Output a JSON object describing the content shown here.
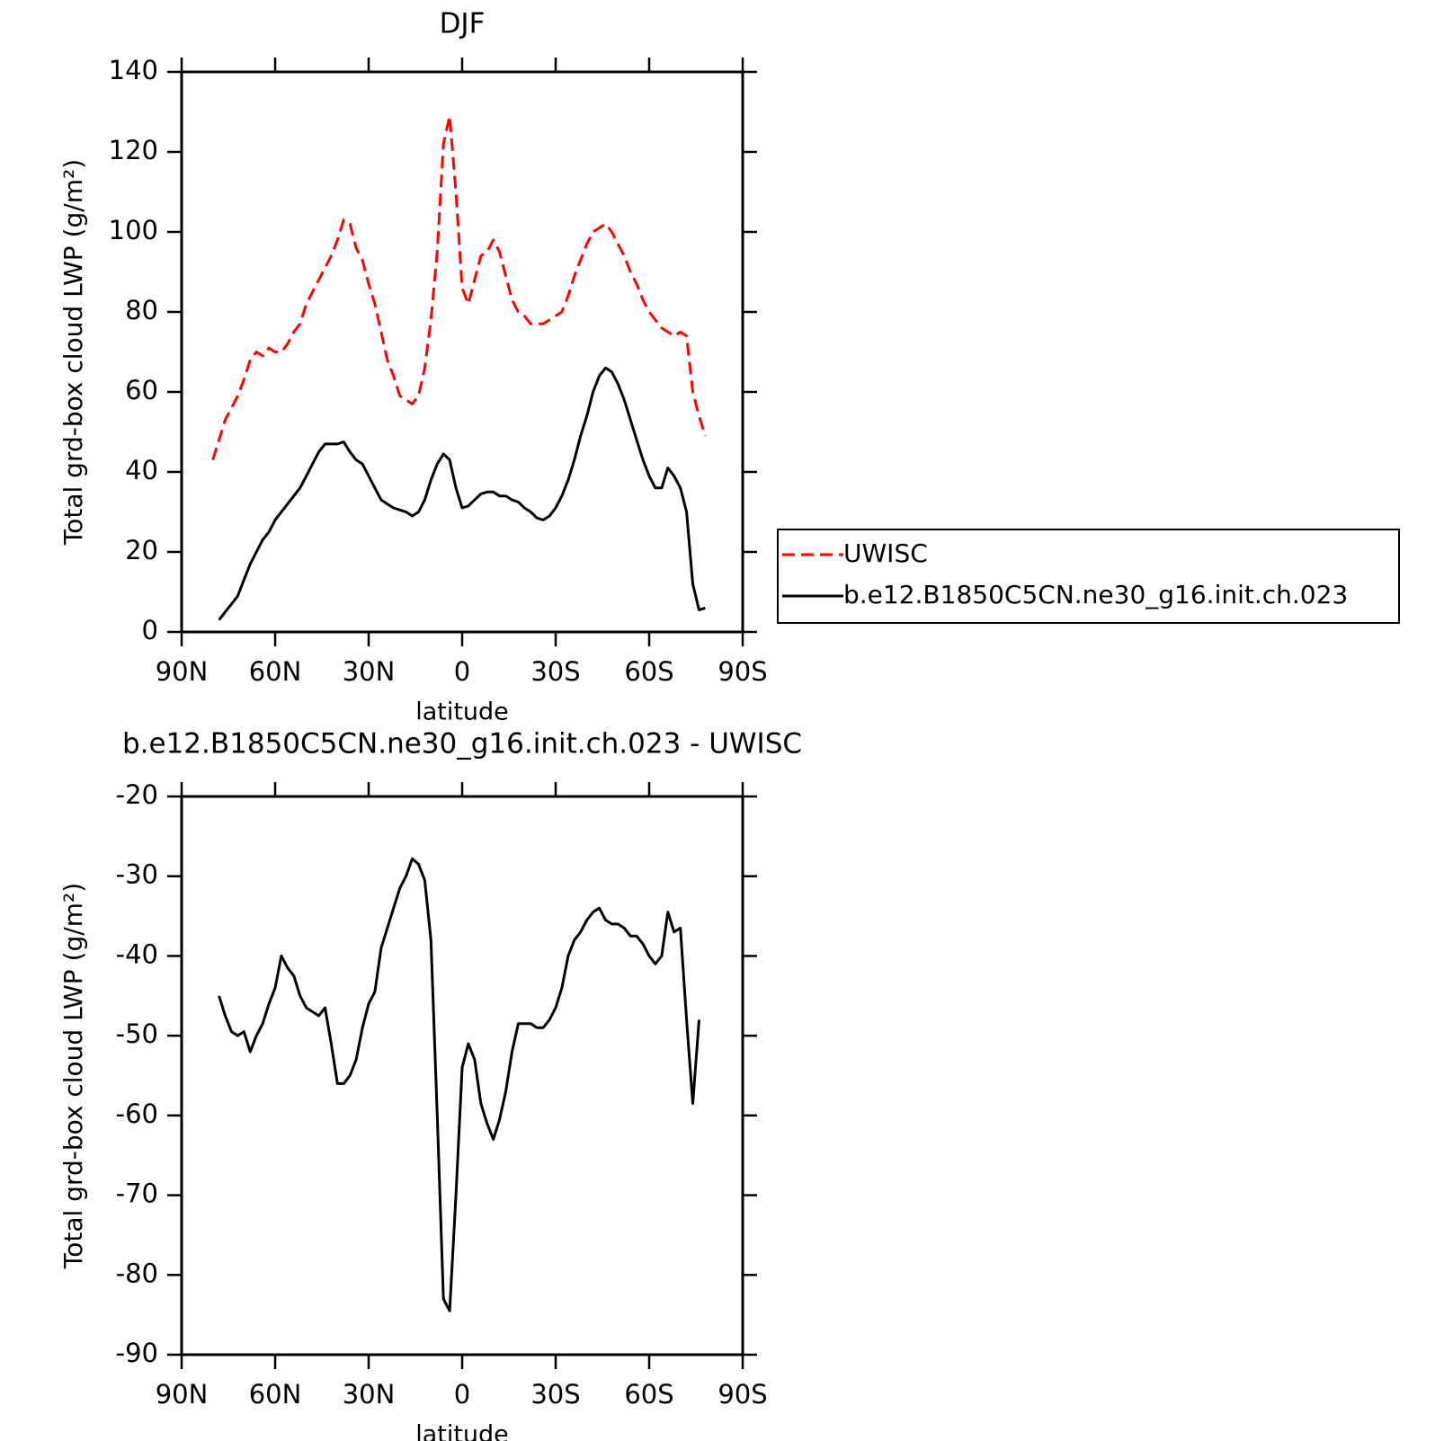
{
  "chart_data": [
    {
      "type": "line",
      "title": "DJF",
      "xlabel": "latitude",
      "ylabel": "Total grd-box cloud LWP (g/m²)",
      "x": [
        80,
        78,
        76,
        74,
        72,
        70,
        68,
        66,
        64,
        62,
        60,
        58,
        56,
        54,
        52,
        50,
        48,
        46,
        44,
        42,
        40,
        38,
        36,
        34,
        32,
        30,
        28,
        26,
        24,
        22,
        20,
        18,
        16,
        14,
        12,
        10,
        8,
        6,
        4,
        2,
        0,
        -2,
        -4,
        -6,
        -8,
        -10,
        -12,
        -14,
        -16,
        -18,
        -20,
        -22,
        -24,
        -26,
        -28,
        -30,
        -32,
        -34,
        -36,
        -38,
        -40,
        -42,
        -44,
        -46,
        -48,
        -50,
        -52,
        -54,
        -56,
        -58,
        -60,
        -62,
        -64,
        -66,
        -68,
        -70,
        -72,
        -74,
        -76,
        -78
      ],
      "xlim": [
        90,
        -90
      ],
      "xticks": [
        {
          "value": 90,
          "label": "90N"
        },
        {
          "value": 60,
          "label": "60N"
        },
        {
          "value": 30,
          "label": "30N"
        },
        0,
        {
          "value": -30,
          "label": "30S"
        },
        {
          "value": -60,
          "label": "60S"
        },
        {
          "value": -90,
          "label": "90S"
        }
      ],
      "ylim": [
        0,
        140
      ],
      "yticks": [
        0,
        20,
        40,
        60,
        80,
        100,
        120,
        140
      ],
      "legend": "right",
      "series": [
        {
          "name": "UWISC",
          "color": "#ff0000",
          "linestyle": "dashed",
          "values": [
            43,
            48,
            53,
            56,
            59,
            63,
            68,
            70,
            69,
            71,
            70,
            70,
            72,
            75,
            77,
            82,
            85,
            88,
            91,
            94,
            98,
            103,
            102,
            96,
            93,
            87,
            82,
            75,
            68,
            64,
            59,
            58,
            57,
            59,
            66,
            78,
            95,
            122,
            129,
            110,
            86,
            82,
            88,
            94,
            95,
            98,
            95,
            89,
            83,
            80,
            79,
            77,
            77,
            77,
            78,
            79,
            80,
            84,
            89,
            93,
            97,
            100,
            101,
            102,
            100,
            97,
            94,
            90,
            87,
            83,
            80,
            78,
            76,
            75,
            74,
            75,
            74,
            60,
            54,
            49
          ]
        },
        {
          "name": "b.e12.B1850C5CN.ne30_g16.init.ch.023",
          "color": "#000000",
          "linestyle": "solid",
          "values": [
            null,
            3,
            5,
            7,
            9,
            13,
            17,
            20,
            23,
            25,
            28,
            30,
            32,
            34,
            36,
            39,
            42,
            45,
            47,
            47,
            47,
            47.5,
            45,
            43,
            42,
            39,
            36,
            33,
            32,
            31,
            30.5,
            30,
            29,
            30,
            33,
            38,
            42,
            44.5,
            43,
            36,
            31,
            31.5,
            33,
            34.5,
            35,
            35,
            34,
            34,
            33,
            32.5,
            31,
            30,
            28.5,
            28,
            29,
            31,
            34,
            38,
            43,
            49,
            54,
            60,
            64,
            66,
            65,
            62,
            58,
            53,
            48,
            43,
            39,
            36,
            36,
            41,
            39,
            36,
            30,
            12,
            5.5,
            6
          ]
        }
      ]
    },
    {
      "type": "line",
      "title": "b.e12.B1850C5CN.ne30_g16.init.ch.023 - UWISC",
      "xlabel": "latitude",
      "ylabel": "Total grd-box cloud LWP (g/m²)",
      "x": [
        78,
        76,
        74,
        72,
        70,
        68,
        66,
        64,
        62,
        60,
        58,
        56,
        54,
        52,
        50,
        48,
        46,
        44,
        42,
        40,
        38,
        36,
        34,
        32,
        30,
        28,
        26,
        24,
        22,
        20,
        18,
        16,
        14,
        12,
        10,
        8,
        6,
        4,
        2,
        0,
        -2,
        -4,
        -6,
        -8,
        -10,
        -12,
        -14,
        -16,
        -18,
        -20,
        -22,
        -24,
        -26,
        -28,
        -30,
        -32,
        -34,
        -36,
        -38,
        -40,
        -42,
        -44,
        -46,
        -48,
        -50,
        -52,
        -54,
        -56,
        -58,
        -60,
        -62,
        -64,
        -66,
        -68,
        -70,
        -72,
        -74,
        -76
      ],
      "xlim": [
        90,
        -90
      ],
      "xticks": [
        {
          "value": 90,
          "label": "90N"
        },
        {
          "value": 60,
          "label": "60N"
        },
        {
          "value": 30,
          "label": "30N"
        },
        0,
        {
          "value": -30,
          "label": "30S"
        },
        {
          "value": -60,
          "label": "60S"
        },
        {
          "value": -90,
          "label": "90S"
        }
      ],
      "ylim": [
        -90,
        -20
      ],
      "yticks": [
        -90,
        -80,
        -70,
        -60,
        -50,
        -40,
        -30,
        -20
      ],
      "series": [
        {
          "color": "#000000",
          "linestyle": "solid",
          "values": [
            -45,
            -47.5,
            -49.5,
            -50,
            -49.5,
            -52,
            -50,
            -48.5,
            -46,
            -44,
            -40,
            -41.5,
            -42.5,
            -45,
            -46.5,
            -47,
            -47.5,
            -46.5,
            -51,
            -56,
            -56,
            -55,
            -53,
            -49,
            -46,
            -44.5,
            -39,
            -36.5,
            -34,
            -31.5,
            -30,
            -27.8,
            -28.5,
            -30.5,
            -38,
            -60,
            -83,
            -84.5,
            -70,
            -54,
            -51,
            -53,
            -58.5,
            -61,
            -63,
            -60.5,
            -57,
            -52,
            -48.5,
            -48.5,
            -48.5,
            -49,
            -49,
            -48,
            -46.5,
            -44,
            -40,
            -38,
            -37,
            -35.5,
            -34.5,
            -34,
            -35.5,
            -36,
            -36,
            -36.5,
            -37.5,
            -37.5,
            -38.5,
            -40,
            -41,
            -40,
            -34.5,
            -37,
            -36.5,
            -48,
            -58.5,
            -48
          ]
        }
      ]
    }
  ]
}
